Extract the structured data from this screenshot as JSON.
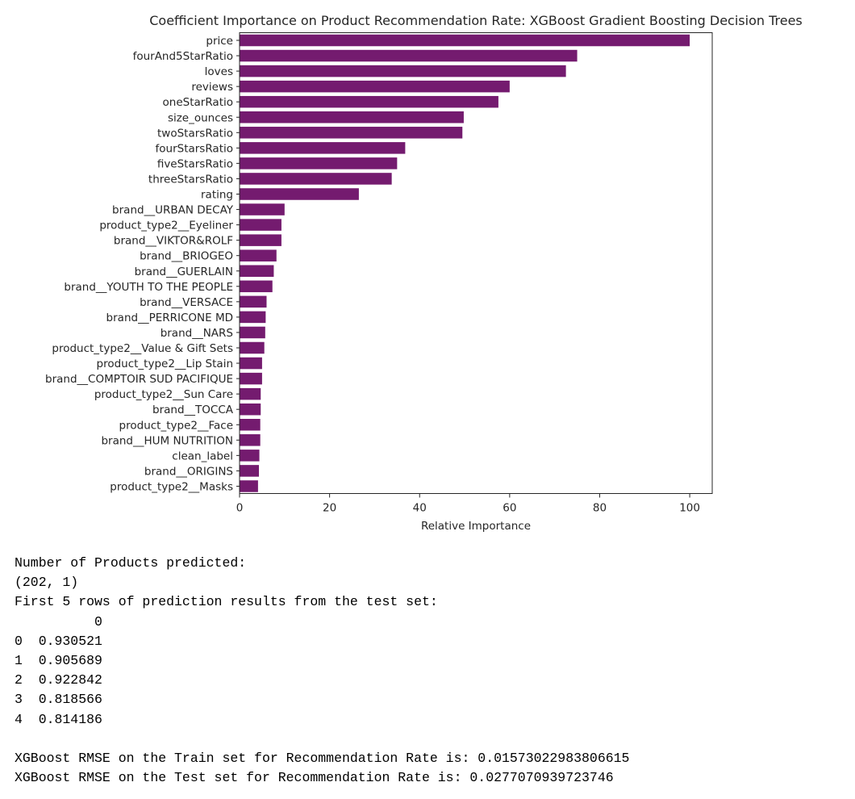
{
  "chart_data": {
    "type": "bar",
    "orientation": "horizontal",
    "title": "Coefficient Importance on Product Recommendation Rate: XGBoost Gradient Boosting Decision Trees",
    "xlabel": "Relative Importance",
    "ylabel": "",
    "xlim": [
      0,
      105
    ],
    "xticks": [
      0,
      20,
      40,
      60,
      80,
      100
    ],
    "grid": false,
    "bar_color": "#741b6f",
    "categories": [
      "price",
      "fourAnd5StarRatio",
      "loves",
      "reviews",
      "oneStarRatio",
      "size_ounces",
      "twoStarsRatio",
      "fourStarsRatio",
      "fiveStarsRatio",
      "threeStarsRatio",
      "rating",
      "brand__URBAN DECAY",
      "product_type2__Eyeliner",
      "brand__VIKTOR&ROLF",
      "brand__BRIOGEO",
      "brand__GUERLAIN",
      "brand__YOUTH TO THE PEOPLE",
      "brand__VERSACE",
      "brand__PERRICONE MD",
      "brand__NARS",
      "product_type2__Value & Gift Sets",
      "product_type2__Lip Stain",
      "brand__COMPTOIR SUD PACIFIQUE",
      "product_type2__Sun Care",
      "brand__TOCCA",
      "product_type2__Face",
      "brand__HUM NUTRITION",
      "clean_label",
      "brand__ORIGINS",
      "product_type2__Masks"
    ],
    "values": [
      100,
      75,
      72.5,
      60,
      57.5,
      49.8,
      49.5,
      36.8,
      35,
      33.8,
      26.5,
      10,
      9.3,
      9.3,
      8.2,
      7.6,
      7.3,
      6,
      5.8,
      5.7,
      5.5,
      5,
      5,
      4.7,
      4.7,
      4.6,
      4.6,
      4.4,
      4.3,
      4.1
    ]
  },
  "output": {
    "lines": [
      "Number of Products predicted:",
      "(202, 1)",
      "First 5 rows of prediction results from the test set:",
      "          0",
      "0  0.930521",
      "1  0.905689",
      "2  0.922842",
      "3  0.818566",
      "4  0.814186",
      "",
      "XGBoost RMSE on the Train set for Recommendation Rate is: 0.01573022983806615",
      "XGBoost RMSE on the Test set for Recommendation Rate is: 0.0277070939723746"
    ]
  }
}
